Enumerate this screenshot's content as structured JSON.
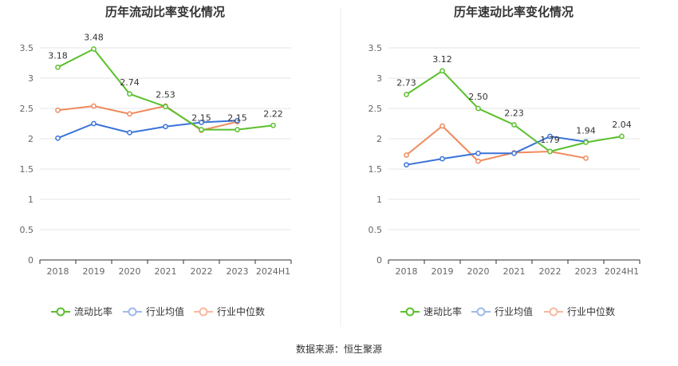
{
  "source": "数据来源：恒生聚源",
  "chart_data": [
    {
      "type": "line",
      "title": "历年流动比率变化情况",
      "categories": [
        "2018",
        "2019",
        "2020",
        "2021",
        "2022",
        "2023",
        "2024H1"
      ],
      "y_ticks": [
        "0",
        "0.5",
        "1",
        "1.5",
        "2",
        "2.5",
        "3",
        "3.5"
      ],
      "ylim": [
        0,
        3.5
      ],
      "grid": true,
      "legend_position": "bottom",
      "series": [
        {
          "name": "流动比率",
          "color": "#5ac02c",
          "values": [
            3.18,
            3.48,
            2.74,
            2.53,
            2.15,
            2.15,
            2.22
          ],
          "labels": [
            "3.18",
            "3.48",
            "2.74",
            "2.53",
            "2.15",
            "2.15",
            "2.22"
          ]
        },
        {
          "name": "行业均值",
          "color": "#3a73d8",
          "values": [
            2.01,
            2.25,
            2.1,
            2.2,
            2.27,
            2.3,
            null
          ]
        },
        {
          "name": "行业中位数",
          "color": "#f08a5c",
          "values": [
            2.47,
            2.54,
            2.41,
            2.54,
            2.14,
            2.28,
            null
          ]
        }
      ]
    },
    {
      "type": "line",
      "title": "历年速动比率变化情况",
      "categories": [
        "2018",
        "2019",
        "2020",
        "2021",
        "2022",
        "2023",
        "2024H1"
      ],
      "y_ticks": [
        "0",
        "0.5",
        "1",
        "1.5",
        "2",
        "2.5",
        "3",
        "3.5"
      ],
      "ylim": [
        0,
        3.5
      ],
      "grid": true,
      "legend_position": "bottom",
      "series": [
        {
          "name": "速动比率",
          "color": "#5ac02c",
          "values": [
            2.73,
            3.12,
            2.5,
            2.23,
            1.79,
            1.94,
            2.04
          ],
          "labels": [
            "2.73",
            "3.12",
            "2.50",
            "2.23",
            "1.79",
            "1.94",
            "2.04"
          ]
        },
        {
          "name": "行业均值",
          "color": "#3a73d8",
          "values": [
            1.57,
            1.67,
            1.76,
            1.76,
            2.04,
            1.95,
            null
          ]
        },
        {
          "name": "行业中位数",
          "color": "#f08a5c",
          "values": [
            1.73,
            2.21,
            1.63,
            1.77,
            1.79,
            1.68,
            null
          ]
        }
      ]
    }
  ]
}
